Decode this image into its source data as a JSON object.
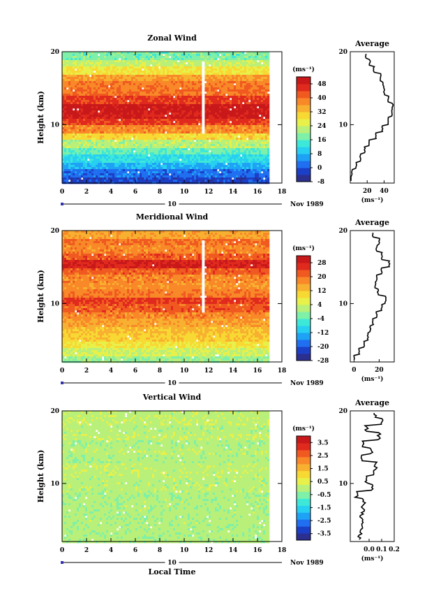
{
  "figure": {
    "x_axis_title": "Local Time",
    "date_day": "10",
    "date_label": "Nov 1989",
    "average_title": "Average",
    "y_axis_title": "Height (km)",
    "unit": "(ms⁻¹)"
  },
  "chart_data": [
    {
      "type": "heatmap",
      "title": "Zonal Wind",
      "xlabel": "Local Time",
      "ylabel": "Height (km)",
      "x_range": [
        0,
        18
      ],
      "y_range": [
        2,
        20
      ],
      "x_ticks": [
        0,
        2,
        4,
        6,
        8,
        10,
        12,
        14,
        16,
        18
      ],
      "y_ticks": [
        10,
        20
      ],
      "colorbar_label": "(ms⁻¹)",
      "colorbar_ticks": [
        "48",
        "40",
        "32",
        "24",
        "16",
        "8",
        "0",
        "-8"
      ],
      "colorbar_range": [
        -8,
        52
      ],
      "profile_by_height": [
        {
          "h": 2.5,
          "v": -2
        },
        {
          "h": 3.5,
          "v": 2
        },
        {
          "h": 4.5,
          "v": 7
        },
        {
          "h": 5.5,
          "v": 12
        },
        {
          "h": 6.5,
          "v": 17
        },
        {
          "h": 7.5,
          "v": 22
        },
        {
          "h": 8.5,
          "v": 30
        },
        {
          "h": 9.5,
          "v": 38
        },
        {
          "h": 10.5,
          "v": 45
        },
        {
          "h": 11.5,
          "v": 49
        },
        {
          "h": 12.5,
          "v": 50
        },
        {
          "h": 13.5,
          "v": 45
        },
        {
          "h": 14.5,
          "v": 40
        },
        {
          "h": 15.5,
          "v": 39
        },
        {
          "h": 16.5,
          "v": 36
        },
        {
          "h": 17.5,
          "v": 28
        },
        {
          "h": 18.5,
          "v": 23
        },
        {
          "h": 19.5,
          "v": 18
        }
      ],
      "average": {
        "title": "Average",
        "xlabel": "(ms⁻¹)",
        "x_range": [
          0,
          52
        ],
        "x_ticks": [
          "20",
          "40"
        ],
        "x_tick_values": [
          20,
          40
        ],
        "y_ticks": [
          "10",
          "20"
        ]
      }
    },
    {
      "type": "heatmap",
      "title": "Meridional Wind",
      "xlabel": "Local Time",
      "ylabel": "Height (km)",
      "x_range": [
        0,
        18
      ],
      "y_range": [
        2,
        20
      ],
      "x_ticks": [
        0,
        2,
        4,
        6,
        8,
        10,
        12,
        14,
        16,
        18
      ],
      "y_ticks": [
        10,
        20
      ],
      "colorbar_label": "(ms⁻¹)",
      "colorbar_ticks": [
        "28",
        "20",
        "12",
        "4",
        "-4",
        "-12",
        "-20",
        "-28"
      ],
      "colorbar_range": [
        -28,
        32
      ],
      "profile_by_height": [
        {
          "h": 2.5,
          "v": 0
        },
        {
          "h": 3.5,
          "v": 4
        },
        {
          "h": 4.5,
          "v": 8
        },
        {
          "h": 5.5,
          "v": 11
        },
        {
          "h": 6.5,
          "v": 13
        },
        {
          "h": 7.5,
          "v": 15
        },
        {
          "h": 8.5,
          "v": 18
        },
        {
          "h": 9.5,
          "v": 22
        },
        {
          "h": 10.5,
          "v": 25
        },
        {
          "h": 11.5,
          "v": 19
        },
        {
          "h": 12.5,
          "v": 17
        },
        {
          "h": 13.5,
          "v": 18
        },
        {
          "h": 14.5,
          "v": 22
        },
        {
          "h": 15.5,
          "v": 28
        },
        {
          "h": 16.5,
          "v": 22
        },
        {
          "h": 17.5,
          "v": 18
        },
        {
          "h": 18.5,
          "v": 20
        },
        {
          "h": 19.5,
          "v": 15
        }
      ],
      "average": {
        "title": "Average",
        "xlabel": "(ms⁻¹)",
        "x_range": [
          -3,
          32
        ],
        "x_ticks": [
          "0",
          "20"
        ],
        "x_tick_values": [
          0,
          20
        ],
        "y_ticks": [
          "10",
          "20"
        ]
      }
    },
    {
      "type": "heatmap",
      "title": "Vertical Wind",
      "xlabel": "Local Time",
      "ylabel": "Height (km)",
      "x_range": [
        0,
        18
      ],
      "y_range": [
        2,
        20
      ],
      "x_ticks": [
        0,
        2,
        4,
        6,
        8,
        10,
        12,
        14,
        16,
        18
      ],
      "y_ticks": [
        10,
        20
      ],
      "colorbar_label": "(ms⁻¹)",
      "colorbar_ticks": [
        "3.5",
        "2.5",
        "1.5",
        "0.5",
        "-0.5",
        "-1.5",
        "-2.5",
        "-3.5"
      ],
      "colorbar_range": [
        -4,
        4
      ],
      "profile_by_height": [
        {
          "h": 2.5,
          "v": -0.08
        },
        {
          "h": 3.5,
          "v": -0.06
        },
        {
          "h": 4.5,
          "v": -0.05
        },
        {
          "h": 5.5,
          "v": -0.06
        },
        {
          "h": 6.5,
          "v": -0.05
        },
        {
          "h": 7.5,
          "v": -0.04
        },
        {
          "h": 8.5,
          "v": -0.1
        },
        {
          "h": 9.5,
          "v": 0.02
        },
        {
          "h": 10.5,
          "v": -0.02
        },
        {
          "h": 11.5,
          "v": 0.04
        },
        {
          "h": 12.5,
          "v": 0.05
        },
        {
          "h": 13.5,
          "v": -0.05
        },
        {
          "h": 14.5,
          "v": 0.02
        },
        {
          "h": 15.5,
          "v": -0.05
        },
        {
          "h": 16.5,
          "v": 0.08
        },
        {
          "h": 17.5,
          "v": -0.02
        },
        {
          "h": 18.5,
          "v": 0.1
        },
        {
          "h": 19.5,
          "v": 0.05
        }
      ],
      "average": {
        "title": "Average",
        "xlabel": "(ms⁻¹)",
        "x_range": [
          -0.15,
          0.2
        ],
        "x_ticks": [
          "0.0",
          "0.1",
          "0.2"
        ],
        "x_tick_values": [
          0.0,
          0.1,
          0.2
        ],
        "y_ticks": [
          "10",
          "20"
        ]
      }
    }
  ]
}
